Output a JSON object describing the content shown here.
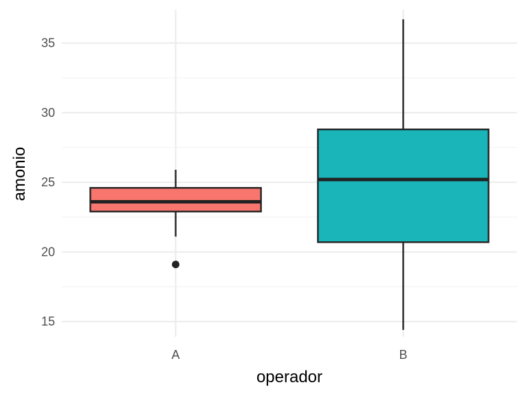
{
  "chart_data": {
    "type": "boxplot",
    "xlabel": "operador",
    "ylabel": "amonio",
    "ylim": [
      13.9,
      37.4
    ],
    "y_ticks": [
      15,
      20,
      25,
      30,
      35
    ],
    "grid": true,
    "legend": "none",
    "categories": [
      "A",
      "B"
    ],
    "boxes": [
      {
        "category": "A",
        "fill": "#F8766D",
        "whisker_low": 21.1,
        "q1": 22.9,
        "median": 23.6,
        "q3": 24.6,
        "whisker_high": 25.9,
        "outliers": [
          19.1
        ]
      },
      {
        "category": "B",
        "fill": "#19B5B9",
        "whisker_low": 14.4,
        "q1": 20.7,
        "median": 25.2,
        "q3": 28.8,
        "whisker_high": 36.7,
        "outliers": []
      }
    ]
  },
  "colors": {
    "grid_major": "#EBEBEB",
    "grid_minor": "#F2F2F2",
    "box_outline": "#222222"
  }
}
